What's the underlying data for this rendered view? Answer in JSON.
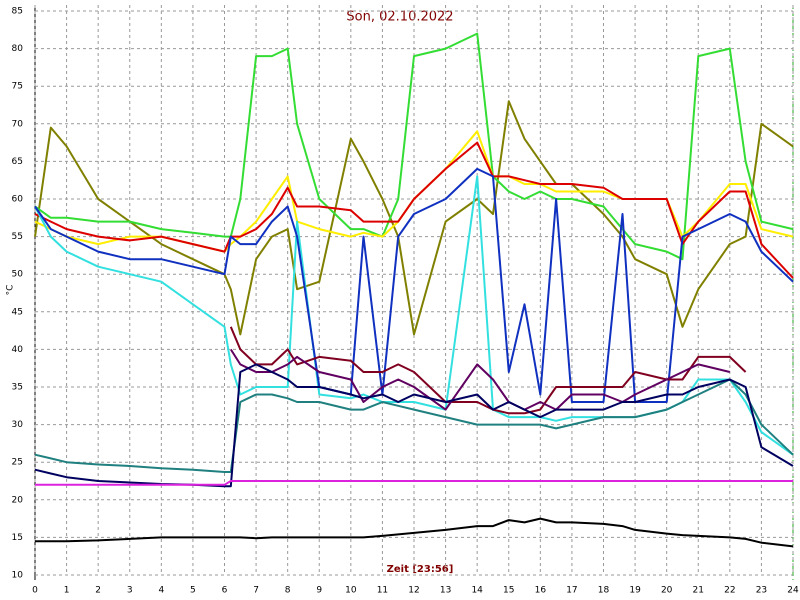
{
  "chart_data": {
    "type": "line",
    "title": "Son, 02.10.2022",
    "x_label": "Zeit [23:56]",
    "y_label": "°C",
    "xlim": [
      0,
      24
    ],
    "ylim": [
      10,
      85
    ],
    "xticks": [
      0,
      1,
      2,
      3,
      4,
      5,
      6,
      7,
      8,
      9,
      10,
      11,
      12,
      13,
      14,
      15,
      16,
      17,
      18,
      19,
      20,
      21,
      22,
      23,
      24
    ],
    "yticks": [
      10,
      15,
      20,
      25,
      30,
      35,
      40,
      45,
      50,
      55,
      60,
      65,
      70,
      75,
      80,
      85
    ],
    "grid": true,
    "x": [
      0,
      0.5,
      1,
      2,
      3,
      4,
      5,
      6,
      6.2,
      6.5,
      7,
      7.5,
      8,
      8.3,
      9,
      10,
      10.4,
      11,
      11.5,
      12,
      13,
      14,
      14.5,
      15,
      15.5,
      16,
      16.5,
      17,
      18,
      18.6,
      19,
      20,
      20.5,
      21,
      22,
      22.5,
      23,
      24
    ],
    "series": [
      {
        "color": "#808000",
        "values": [
          55,
          69.5,
          67,
          60,
          57,
          54,
          52,
          50,
          48,
          42,
          52,
          55,
          56,
          48,
          49,
          68,
          65,
          60,
          55,
          42,
          57,
          60,
          58,
          73,
          68,
          65,
          62,
          62,
          58,
          55,
          52,
          50,
          43,
          48,
          54,
          55,
          70,
          67
        ]
      },
      {
        "color": "#33dd33",
        "values": [
          59,
          57.5,
          57.5,
          57,
          57,
          56,
          55.5,
          55,
          55,
          60,
          79,
          79,
          80,
          70,
          60,
          56,
          56,
          55,
          60,
          79,
          80,
          82,
          63,
          61,
          60,
          61,
          60,
          60,
          59,
          56,
          54,
          53,
          52,
          79,
          80,
          65,
          57,
          56
        ]
      },
      {
        "color": "#ffee00",
        "values": [
          57,
          56,
          55,
          54,
          55,
          55,
          54,
          53,
          54,
          55,
          57,
          60,
          63,
          57,
          56,
          55,
          55.5,
          55,
          57,
          60,
          64,
          69,
          63,
          63,
          62,
          62,
          61,
          61,
          61,
          60,
          60,
          60,
          55,
          57,
          62,
          62,
          56,
          55
        ]
      },
      {
        "color": "#dd0000",
        "values": [
          58,
          57,
          56,
          55,
          54.5,
          55,
          54,
          53,
          55,
          55,
          56,
          58,
          61.5,
          59,
          59,
          58.5,
          57,
          57,
          57,
          60,
          64,
          67.5,
          63,
          63,
          62.5,
          62,
          62,
          62,
          61.5,
          60,
          60,
          60,
          54,
          57,
          61,
          61,
          54,
          49.5
        ]
      },
      {
        "color": "#33e0e0",
        "values": [
          59,
          55,
          53,
          51,
          50,
          49,
          46,
          43,
          38,
          34,
          35,
          35,
          35,
          57,
          34,
          33.5,
          34,
          33,
          33,
          33,
          32,
          63,
          32,
          31,
          31,
          31,
          30.5,
          31,
          31,
          31,
          31,
          32,
          33,
          36,
          36,
          33,
          29,
          26
        ]
      },
      {
        "color": "#1030c0",
        "values": [
          59,
          56,
          55,
          53,
          52,
          52,
          51,
          50,
          55,
          54,
          54,
          57,
          59,
          55,
          35,
          34,
          55,
          34,
          55,
          58,
          60,
          64,
          63,
          37,
          46,
          34,
          60,
          33,
          33,
          58,
          33,
          33,
          55,
          56,
          58,
          57,
          53,
          49
        ]
      },
      {
        "color": "#800020",
        "values": [
          null,
          null,
          null,
          null,
          null,
          null,
          null,
          null,
          43,
          40,
          38,
          38,
          40,
          38,
          39,
          38.5,
          37,
          37,
          38,
          37,
          33,
          33,
          32,
          31.5,
          31.5,
          32,
          35,
          35,
          35,
          35,
          37,
          36,
          36,
          39,
          39,
          37,
          null,
          null
        ]
      },
      {
        "color": "#600060",
        "values": [
          null,
          null,
          null,
          null,
          null,
          null,
          null,
          null,
          40,
          38,
          37,
          37,
          38,
          39,
          37,
          36,
          33,
          35,
          36,
          35,
          32,
          38,
          36,
          33,
          32,
          33,
          32,
          34,
          34,
          33,
          34,
          36,
          37,
          38,
          37,
          null,
          null,
          null
        ]
      },
      {
        "color": "#208080",
        "values": [
          26,
          25.5,
          25,
          24.7,
          24.5,
          24.2,
          24,
          23.7,
          23.7,
          33,
          34,
          34,
          33.5,
          33,
          33,
          32,
          32,
          33,
          32.5,
          32,
          31,
          30,
          30,
          30,
          30,
          30,
          29.5,
          30,
          31,
          31,
          31,
          32,
          33,
          34,
          36,
          34,
          30,
          26
        ]
      },
      {
        "color": "#000060",
        "values": [
          24,
          23.5,
          23,
          22.5,
          22.3,
          22.1,
          22,
          21.8,
          21.8,
          37,
          38,
          37,
          36,
          35,
          35,
          34,
          33.5,
          34,
          33,
          34,
          33,
          34,
          32,
          33,
          32,
          31,
          32,
          32,
          32,
          33,
          33,
          34,
          34,
          35,
          36,
          35,
          27,
          24.5
        ]
      },
      {
        "color": "#dd22dd",
        "values": [
          22,
          22,
          22,
          22,
          22,
          22,
          22,
          22,
          22.5,
          22.5,
          22.5,
          22.5,
          22.5,
          22.5,
          22.5,
          22.5,
          22.5,
          22.5,
          22.5,
          22.5,
          22.5,
          22.5,
          22.5,
          22.5,
          22.5,
          22.5,
          22.5,
          22.5,
          22.5,
          22.5,
          22.5,
          22.5,
          22.5,
          22.5,
          22.5,
          22.5,
          22.5,
          22.5
        ]
      },
      {
        "color": "#000000",
        "values": [
          14.5,
          14.5,
          14.5,
          14.6,
          14.8,
          15,
          15,
          15,
          15,
          15,
          14.9,
          15,
          15,
          15,
          15,
          15,
          15,
          15.2,
          15.4,
          15.6,
          16,
          16.5,
          16.5,
          17.3,
          17,
          17.5,
          17,
          17,
          16.8,
          16.5,
          16,
          15.5,
          15.3,
          15.2,
          15,
          14.8,
          14.3,
          13.8
        ]
      }
    ]
  }
}
